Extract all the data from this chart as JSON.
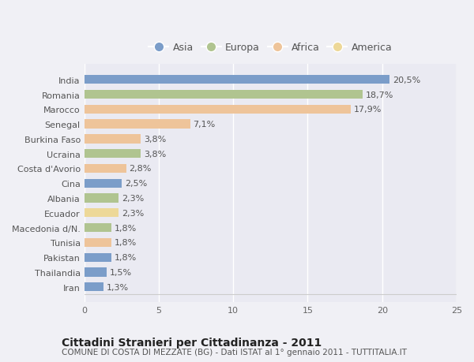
{
  "countries": [
    "India",
    "Romania",
    "Marocco",
    "Senegal",
    "Burkina Faso",
    "Ucraina",
    "Costa d'Avorio",
    "Cina",
    "Albania",
    "Ecuador",
    "Macedonia d/N.",
    "Tunisia",
    "Pakistan",
    "Thailandia",
    "Iran"
  ],
  "values": [
    20.5,
    18.7,
    17.9,
    7.1,
    3.8,
    3.8,
    2.8,
    2.5,
    2.3,
    2.3,
    1.8,
    1.8,
    1.8,
    1.5,
    1.3
  ],
  "labels": [
    "20,5%",
    "18,7%",
    "17,9%",
    "7,1%",
    "3,8%",
    "3,8%",
    "2,8%",
    "2,5%",
    "2,3%",
    "2,3%",
    "1,8%",
    "1,8%",
    "1,8%",
    "1,5%",
    "1,3%"
  ],
  "continents": [
    "Asia",
    "Europa",
    "Africa",
    "Africa",
    "Africa",
    "Europa",
    "Africa",
    "Asia",
    "Europa",
    "America",
    "Europa",
    "Africa",
    "Asia",
    "Asia",
    "Asia"
  ],
  "continent_colors": {
    "Asia": "#7b9dc9",
    "Europa": "#b0c490",
    "Africa": "#eec49a",
    "America": "#edd898"
  },
  "legend_order": [
    "Asia",
    "Europa",
    "Africa",
    "America"
  ],
  "xlim": [
    0,
    25
  ],
  "xticks": [
    0,
    5,
    10,
    15,
    20,
    25
  ],
  "title": "Cittadini Stranieri per Cittadinanza - 2011",
  "subtitle": "COMUNE DI COSTA DI MEZZATE (BG) - Dati ISTAT al 1° gennaio 2011 - TUTTITALIA.IT",
  "fig_background": "#f0f0f5",
  "plot_background": "#eaeaf2",
  "grid_color": "#ffffff",
  "label_color": "#555555",
  "label_fontsize": 8,
  "tick_fontsize": 8,
  "title_fontsize": 10,
  "subtitle_fontsize": 7.5
}
